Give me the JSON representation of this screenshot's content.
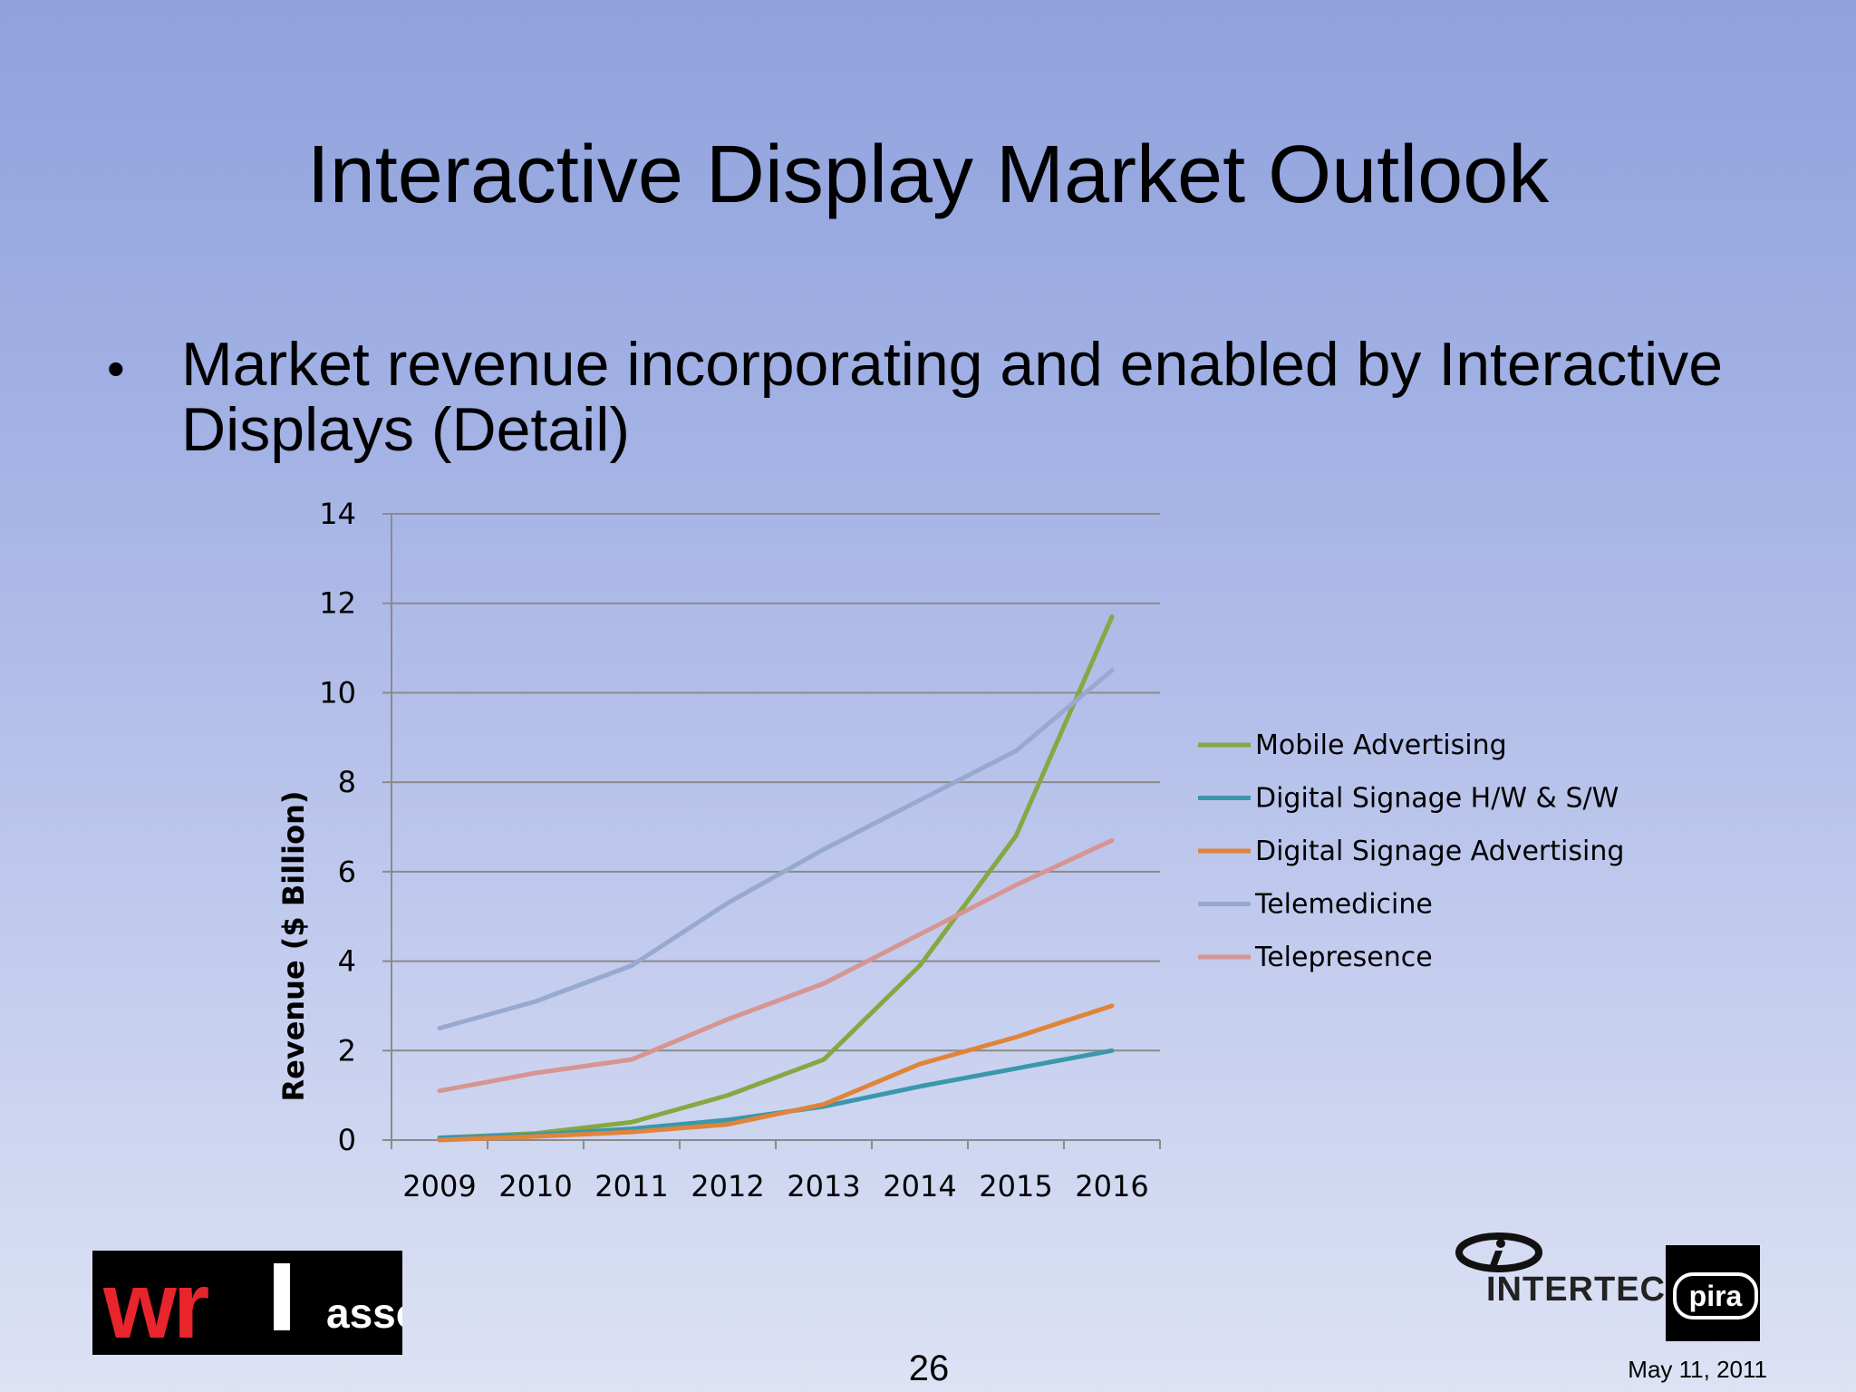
{
  "slide": {
    "title": "Interactive Display Market Outlook",
    "bullet": "Market revenue incorporating and enabled by Interactive Displays (Detail)",
    "page_number": "26",
    "date": "May 11, 2011",
    "logo_left_text": "wrtassociates",
    "logo_right_text": "INTERTECH",
    "logo_right_badge": "pira"
  },
  "chart_data": {
    "type": "line",
    "title": "",
    "xlabel": "",
    "ylabel": "Revenue ($ Billion)",
    "x": [
      "2009",
      "2010",
      "2011",
      "2012",
      "2013",
      "2014",
      "2015",
      "2016"
    ],
    "ylim": [
      0,
      14
    ],
    "yticks": [
      0,
      2,
      4,
      6,
      8,
      10,
      12,
      14
    ],
    "grid": true,
    "legend_position": "right",
    "series": [
      {
        "name": "Mobile Advertising",
        "color": "#86a843",
        "values": [
          0.05,
          0.15,
          0.4,
          1.0,
          1.8,
          3.9,
          6.8,
          11.7
        ]
      },
      {
        "name": "Digital Signage H/W & S/W",
        "color": "#3b97ab",
        "values": [
          0.05,
          0.12,
          0.25,
          0.45,
          0.75,
          1.2,
          1.6,
          2.0
        ]
      },
      {
        "name": "Digital Signage Advertising",
        "color": "#e0843a",
        "values": [
          0.0,
          0.08,
          0.18,
          0.35,
          0.8,
          1.7,
          2.3,
          3.0
        ]
      },
      {
        "name": "Telemedicine",
        "color": "#98a9cf",
        "values": [
          2.5,
          3.1,
          3.9,
          5.3,
          6.5,
          7.6,
          8.7,
          10.5
        ]
      },
      {
        "name": "Telepresence",
        "color": "#d69592",
        "values": [
          1.1,
          1.5,
          1.8,
          2.7,
          3.5,
          4.6,
          5.7,
          6.7
        ]
      }
    ]
  }
}
